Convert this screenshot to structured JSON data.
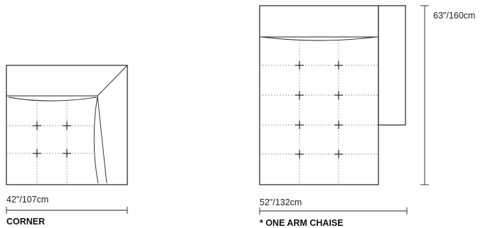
{
  "modules": {
    "corner": {
      "name": "CORNER",
      "width_label": "42\"/107cm"
    },
    "chaise": {
      "name": "* ONE ARM CHAISE",
      "width_label": "52\"/132cm",
      "length_label": "63\"/160cm"
    }
  }
}
